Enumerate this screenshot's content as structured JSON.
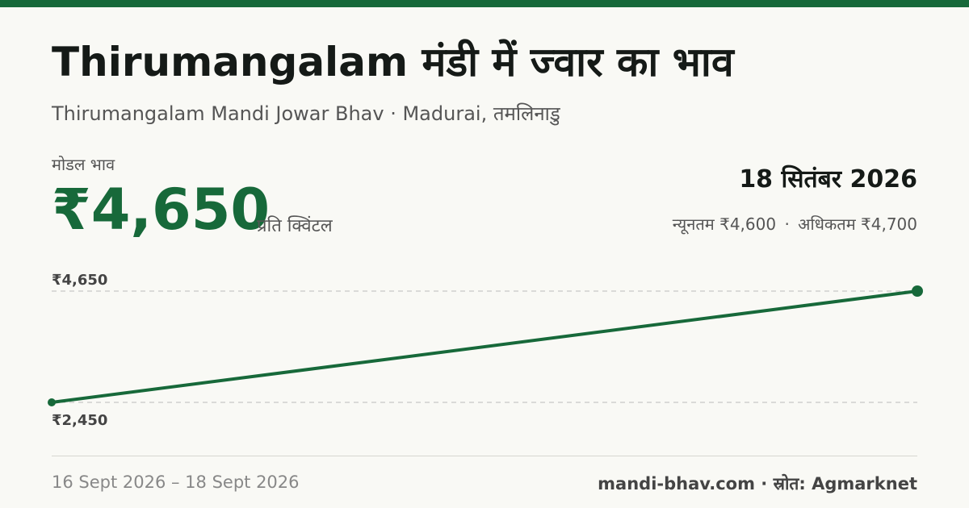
{
  "colors": {
    "accent": "#17693a",
    "background": "#f9f9f5",
    "text_dark": "#151a17",
    "text_muted": "#555555",
    "gridline": "#bbbbbb"
  },
  "header": {
    "title": "Thirumangalam मंडी में ज्वार का भाव",
    "subtitle": "Thirumangalam Mandi Jowar Bhav · Madurai, तमलिनाडु"
  },
  "price": {
    "label": "मोडल भाव",
    "value": "₹4,650",
    "unit": "प्रति क्विंटल"
  },
  "summary": {
    "date": "18 सितंबर 2026",
    "min": "न्यूनतम ₹4,600",
    "separator": "·",
    "max": "अधिकतम ₹4,700"
  },
  "chart_data": {
    "type": "line",
    "x": [
      "16 Sept 2026",
      "18 Sept 2026"
    ],
    "series": [
      {
        "values": [
          2450,
          4650
        ]
      }
    ],
    "ylim": [
      2450,
      4650
    ],
    "reference_labels": [
      "₹4,650",
      "₹2,450"
    ],
    "grid": false,
    "legend": "none"
  },
  "footer": {
    "date_range": "16 Sept 2026 – 18 Sept 2026",
    "source": "mandi-bhav.com · स्रोत: Agmarknet"
  }
}
